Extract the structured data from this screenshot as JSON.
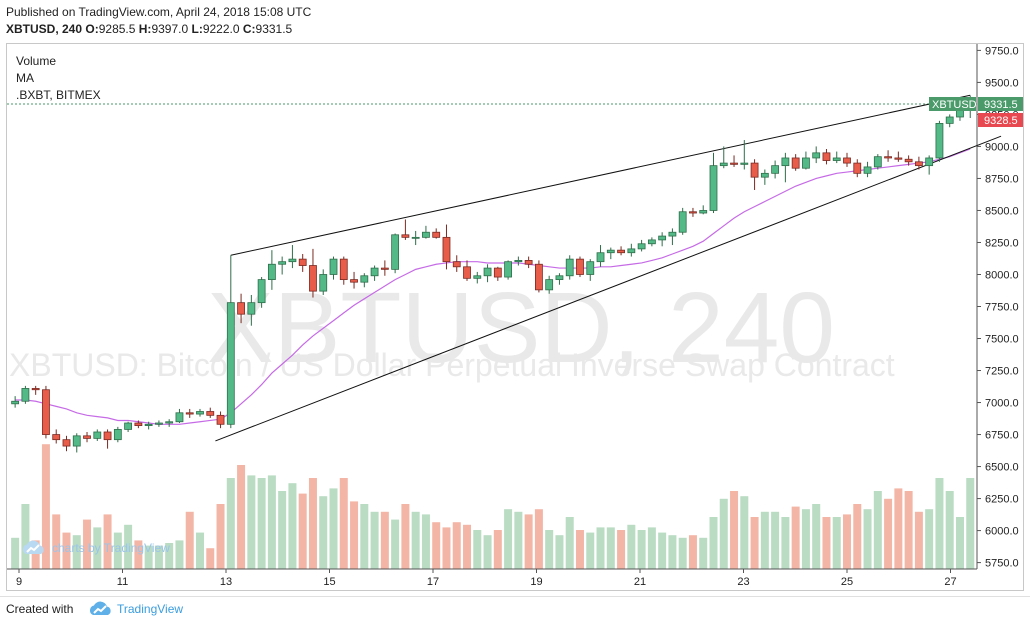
{
  "header": {
    "published": "Published on TradingView.com, April 24, 2018 15:08 UTC",
    "symbol": "XBTUSD, 240",
    "ohlc": {
      "o_label": "O:",
      "o": "9285.5",
      "h_label": "H:",
      "h": "9397.0",
      "l_label": "L:",
      "l": "9222.0",
      "c_label": "C:",
      "c": "9331.5"
    }
  },
  "legend": {
    "volume": "Volume",
    "ma": "MA",
    "index": ".BXBT, BITMEX"
  },
  "watermark": {
    "big": "XBTUSD, 240",
    "desc": "XBTUSD: Bitcoin / US Dollar Perpetual Inverse Swap Contract",
    "charts_by": "charts by TradingView"
  },
  "footer": {
    "created_with": "Created with",
    "brand": "TradingView"
  },
  "colors": {
    "up": "#4e9a6b",
    "up_fill": "#53b987",
    "down": "#eb4d5c",
    "down_fill": "#e85c4a",
    "vol_up": "#b9dcc3",
    "vol_down": "#f3b6a6",
    "ma": "#c66be6",
    "last_price_label": "#4a9a6a",
    "index_label": "#e8484f"
  },
  "price_tags": {
    "last_symbol": "XBTUSD",
    "last_value": "9331.5",
    "index_value": "9328.5"
  },
  "chart_data": {
    "type": "candlestick",
    "timeframe": "240",
    "x_ticks": [
      "9",
      "11",
      "13",
      "15",
      "17",
      "19",
      "21",
      "23",
      "25",
      "27"
    ],
    "y_ticks": [
      "5750.0",
      "6000.0",
      "6250.0",
      "6500.0",
      "6750.0",
      "7000.0",
      "7250.0",
      "7500.0",
      "7750.0",
      "8000.0",
      "8250.0",
      "8500.0",
      "8750.0",
      "9000.0",
      "9250.0",
      "9500.0",
      "9750.0"
    ],
    "ylim": [
      5700,
      9800
    ],
    "last_price": 9331.5,
    "index_price": 9328.5,
    "ohlc": [
      [
        6990,
        7050,
        6960,
        7010
      ],
      [
        7010,
        7130,
        6990,
        7110
      ],
      [
        7110,
        7130,
        7060,
        7100
      ],
      [
        7100,
        7130,
        6720,
        6750
      ],
      [
        6750,
        6790,
        6680,
        6710
      ],
      [
        6710,
        6740,
        6620,
        6660
      ],
      [
        6660,
        6760,
        6610,
        6740
      ],
      [
        6740,
        6770,
        6690,
        6720
      ],
      [
        6720,
        6790,
        6700,
        6770
      ],
      [
        6770,
        6790,
        6640,
        6710
      ],
      [
        6710,
        6810,
        6690,
        6790
      ],
      [
        6790,
        6850,
        6770,
        6840
      ],
      [
        6840,
        6860,
        6800,
        6820
      ],
      [
        6820,
        6850,
        6790,
        6830
      ],
      [
        6830,
        6860,
        6810,
        6840
      ],
      [
        6840,
        6870,
        6810,
        6850
      ],
      [
        6850,
        6950,
        6840,
        6920
      ],
      [
        6920,
        6950,
        6880,
        6910
      ],
      [
        6910,
        6950,
        6890,
        6930
      ],
      [
        6930,
        6960,
        6880,
        6900
      ],
      [
        6900,
        6930,
        6800,
        6830
      ],
      [
        6830,
        8150,
        6800,
        7780
      ],
      [
        7780,
        7850,
        7620,
        7690
      ],
      [
        7690,
        7840,
        7600,
        7780
      ],
      [
        7780,
        7980,
        7740,
        7960
      ],
      [
        7960,
        8190,
        7880,
        8080
      ],
      [
        8080,
        8140,
        8000,
        8100
      ],
      [
        8100,
        8230,
        8050,
        8120
      ],
      [
        8120,
        8160,
        8020,
        8070
      ],
      [
        8070,
        8200,
        7820,
        7870
      ],
      [
        7870,
        8040,
        7840,
        8000
      ],
      [
        8000,
        8140,
        7960,
        8120
      ],
      [
        8120,
        8140,
        7920,
        7960
      ],
      [
        7960,
        8020,
        7890,
        7940
      ],
      [
        7940,
        8010,
        7900,
        7990
      ],
      [
        7990,
        8070,
        7950,
        8050
      ],
      [
        8050,
        8110,
        7990,
        8040
      ],
      [
        8040,
        8320,
        8010,
        8310
      ],
      [
        8310,
        8430,
        8270,
        8290
      ],
      [
        8290,
        8340,
        8230,
        8290
      ],
      [
        8290,
        8380,
        8280,
        8330
      ],
      [
        8330,
        8360,
        8280,
        8290
      ],
      [
        8290,
        8390,
        8040,
        8100
      ],
      [
        8100,
        8150,
        8020,
        8060
      ],
      [
        8060,
        8110,
        7950,
        7970
      ],
      [
        7970,
        8020,
        7930,
        7990
      ],
      [
        7990,
        8080,
        7940,
        8050
      ],
      [
        8050,
        8060,
        7950,
        7980
      ],
      [
        7980,
        8110,
        7960,
        8100
      ],
      [
        8100,
        8140,
        8070,
        8110
      ],
      [
        8110,
        8140,
        8050,
        8080
      ],
      [
        8080,
        8110,
        7860,
        7880
      ],
      [
        7880,
        7990,
        7850,
        7960
      ],
      [
        7960,
        8010,
        7920,
        7990
      ],
      [
        7990,
        8150,
        7960,
        8120
      ],
      [
        8120,
        8140,
        7980,
        8000
      ],
      [
        8000,
        8120,
        7950,
        8100
      ],
      [
        8100,
        8230,
        8060,
        8170
      ],
      [
        8170,
        8210,
        8120,
        8190
      ],
      [
        8190,
        8220,
        8150,
        8170
      ],
      [
        8170,
        8240,
        8140,
        8200
      ],
      [
        8200,
        8270,
        8180,
        8240
      ],
      [
        8240,
        8290,
        8220,
        8270
      ],
      [
        8270,
        8330,
        8220,
        8300
      ],
      [
        8300,
        8360,
        8230,
        8330
      ],
      [
        8330,
        8520,
        8310,
        8490
      ],
      [
        8490,
        8520,
        8450,
        8480
      ],
      [
        8480,
        8540,
        8470,
        8500
      ],
      [
        8500,
        8950,
        8480,
        8850
      ],
      [
        8850,
        9000,
        8830,
        8870
      ],
      [
        8870,
        8930,
        8840,
        8860
      ],
      [
        8860,
        9050,
        8820,
        8870
      ],
      [
        8870,
        8900,
        8660,
        8760
      ],
      [
        8760,
        8820,
        8700,
        8790
      ],
      [
        8790,
        8890,
        8750,
        8850
      ],
      [
        8850,
        8950,
        8720,
        8910
      ],
      [
        8910,
        8940,
        8810,
        8830
      ],
      [
        8830,
        8960,
        8820,
        8910
      ],
      [
        8910,
        9000,
        8870,
        8950
      ],
      [
        8950,
        8980,
        8860,
        8890
      ],
      [
        8890,
        8960,
        8870,
        8910
      ],
      [
        8910,
        8950,
        8840,
        8870
      ],
      [
        8870,
        8900,
        8760,
        8790
      ],
      [
        8790,
        8880,
        8760,
        8840
      ],
      [
        8840,
        8940,
        8820,
        8920
      ],
      [
        8920,
        8970,
        8880,
        8910
      ],
      [
        8910,
        8960,
        8880,
        8900
      ],
      [
        8900,
        8930,
        8850,
        8880
      ],
      [
        8880,
        8920,
        8820,
        8850
      ],
      [
        8850,
        8930,
        8780,
        8910
      ],
      [
        8910,
        9200,
        8880,
        9180
      ],
      [
        9180,
        9250,
        9150,
        9230
      ],
      [
        9230,
        9330,
        9200,
        9285
      ],
      [
        9285,
        9397,
        9222,
        9331.5
      ]
    ],
    "volume": [
      120,
      250,
      110,
      480,
      210,
      140,
      130,
      190,
      160,
      210,
      140,
      170,
      110,
      90,
      90,
      100,
      110,
      220,
      140,
      80,
      250,
      350,
      400,
      360,
      350,
      360,
      300,
      330,
      290,
      350,
      280,
      310,
      350,
      260,
      250,
      220,
      220,
      190,
      250,
      220,
      210,
      180,
      160,
      180,
      170,
      150,
      130,
      150,
      230,
      220,
      210,
      230,
      150,
      130,
      200,
      150,
      140,
      160,
      160,
      150,
      170,
      150,
      160,
      140,
      130,
      120,
      130,
      120,
      200,
      270,
      300,
      280,
      200,
      220,
      220,
      200,
      240,
      230,
      250,
      200,
      200,
      210,
      250,
      230,
      300,
      270,
      310,
      300,
      220,
      230,
      350,
      300,
      200,
      350
    ],
    "ma": [
      7020,
      7020,
      7010,
      6990,
      6970,
      6950,
      6920,
      6900,
      6890,
      6880,
      6860,
      6860,
      6850,
      6840,
      6830,
      6830,
      6830,
      6840,
      6850,
      6860,
      6870,
      6920,
      6990,
      7060,
      7140,
      7230,
      7300,
      7370,
      7450,
      7520,
      7580,
      7640,
      7700,
      7760,
      7810,
      7860,
      7910,
      7960,
      8000,
      8040,
      8060,
      8080,
      8090,
      8100,
      8100,
      8100,
      8090,
      8090,
      8090,
      8090,
      8080,
      8070,
      8060,
      8050,
      8050,
      8050,
      8050,
      8060,
      8060,
      8070,
      8080,
      8090,
      8110,
      8130,
      8160,
      8190,
      8220,
      8260,
      8320,
      8380,
      8440,
      8490,
      8530,
      8570,
      8610,
      8650,
      8690,
      8720,
      8750,
      8770,
      8790,
      8800,
      8810,
      8820,
      8830,
      8840,
      8850,
      8860,
      8870,
      8880,
      8900,
      8920,
      8950,
      8980
    ],
    "trendlines": [
      {
        "from": {
          "bar": 21,
          "price": 8150
        },
        "to": {
          "bar": 93,
          "price": 9400
        }
      },
      {
        "from": {
          "bar": 19.5,
          "price": 6700
        },
        "to": {
          "bar": 96,
          "price": 9080
        }
      }
    ]
  }
}
